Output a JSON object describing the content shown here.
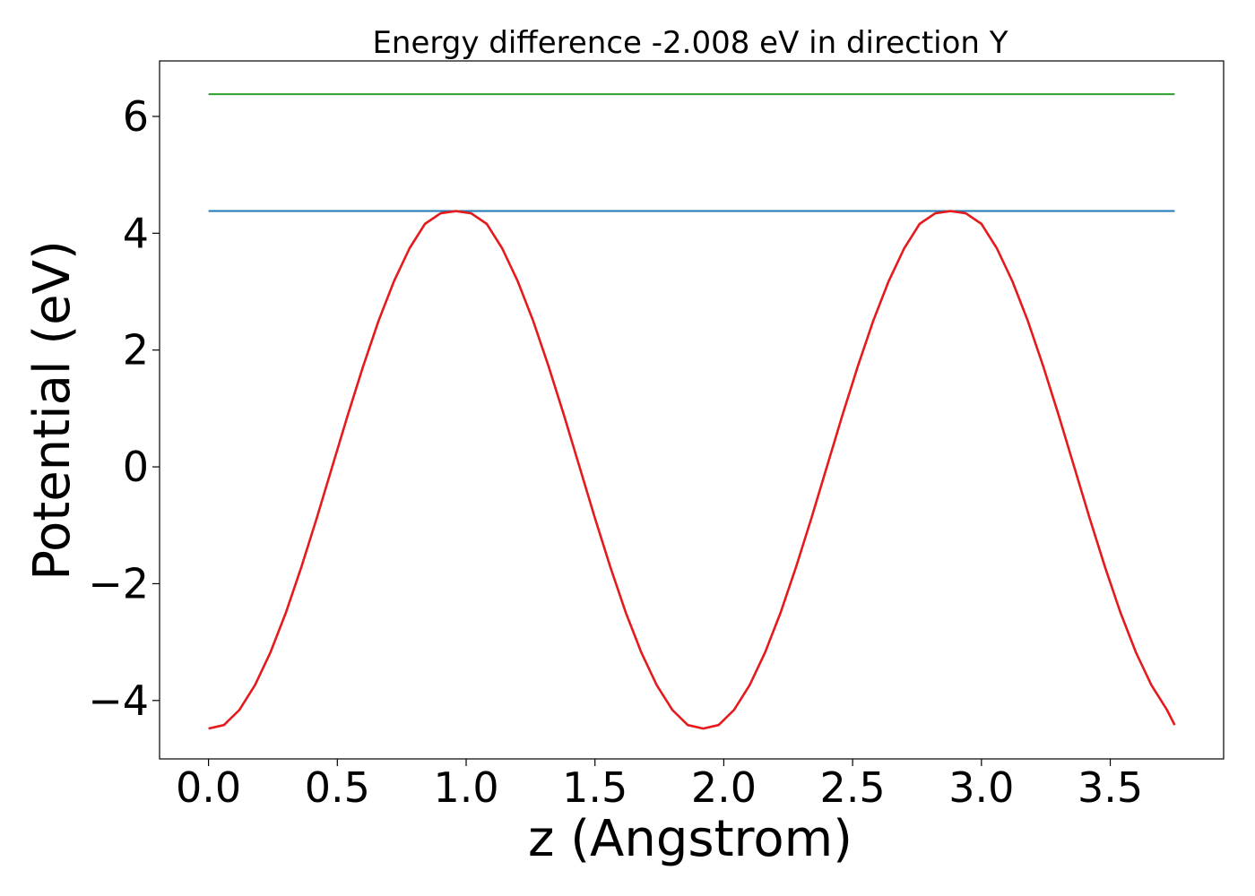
{
  "chart_data": {
    "type": "line",
    "title": "Energy difference -2.008 eV in direction Y",
    "xlabel": "z (Angstrom)",
    "ylabel": "Potential (eV)",
    "xlim": [
      -0.19,
      3.94
    ],
    "ylim": [
      -5.0,
      6.95
    ],
    "xticks": [
      0.0,
      0.5,
      1.0,
      1.5,
      2.0,
      2.5,
      3.0,
      3.5
    ],
    "xtick_labels": [
      "0.0",
      "0.5",
      "1.0",
      "1.5",
      "2.0",
      "2.5",
      "3.0",
      "3.5"
    ],
    "yticks": [
      -4,
      -2,
      0,
      2,
      4,
      6
    ],
    "ytick_labels": [
      "−4",
      "−2",
      "0",
      "2",
      "4",
      "6"
    ],
    "grid": false,
    "series": [
      {
        "type": "hline",
        "color": "#2ca02c",
        "y": 6.38,
        "x_range": [
          0.0,
          3.75
        ]
      },
      {
        "type": "hline",
        "color": "#1f77b4",
        "y": 4.38,
        "x_range": [
          0.0,
          3.75
        ]
      },
      {
        "type": "curve",
        "color": "#e41a1c",
        "x": [
          0.0,
          0.06,
          0.12,
          0.18,
          0.24,
          0.3,
          0.36,
          0.42,
          0.48,
          0.54,
          0.6,
          0.66,
          0.72,
          0.78,
          0.84,
          0.9,
          0.96,
          1.02,
          1.08,
          1.14,
          1.2,
          1.26,
          1.32,
          1.38,
          1.44,
          1.5,
          1.56,
          1.62,
          1.68,
          1.74,
          1.8,
          1.86,
          1.92,
          1.98,
          2.04,
          2.1,
          2.16,
          2.22,
          2.28,
          2.34,
          2.4,
          2.46,
          2.52,
          2.58,
          2.64,
          2.7,
          2.76,
          2.82,
          2.88,
          2.94,
          3.0,
          3.06,
          3.12,
          3.18,
          3.24,
          3.3,
          3.36,
          3.42,
          3.48,
          3.54,
          3.6,
          3.66,
          3.72,
          3.75
        ],
        "y": [
          -4.48,
          -4.42,
          -4.16,
          -3.74,
          -3.18,
          -2.5,
          -1.72,
          -0.88,
          -0.0,
          0.88,
          1.72,
          2.5,
          3.18,
          3.74,
          4.16,
          4.34,
          4.38,
          4.34,
          4.16,
          3.74,
          3.18,
          2.5,
          1.72,
          0.88,
          0.0,
          -0.88,
          -1.72,
          -2.5,
          -3.18,
          -3.74,
          -4.16,
          -4.42,
          -4.48,
          -4.42,
          -4.16,
          -3.74,
          -3.18,
          -2.5,
          -1.72,
          -0.88,
          0.0,
          0.88,
          1.72,
          2.5,
          3.18,
          3.74,
          4.16,
          4.34,
          4.38,
          4.34,
          4.16,
          3.74,
          3.18,
          2.5,
          1.72,
          0.88,
          0.0,
          -0.88,
          -1.72,
          -2.5,
          -3.18,
          -3.74,
          -4.16,
          -4.42
        ]
      }
    ]
  }
}
